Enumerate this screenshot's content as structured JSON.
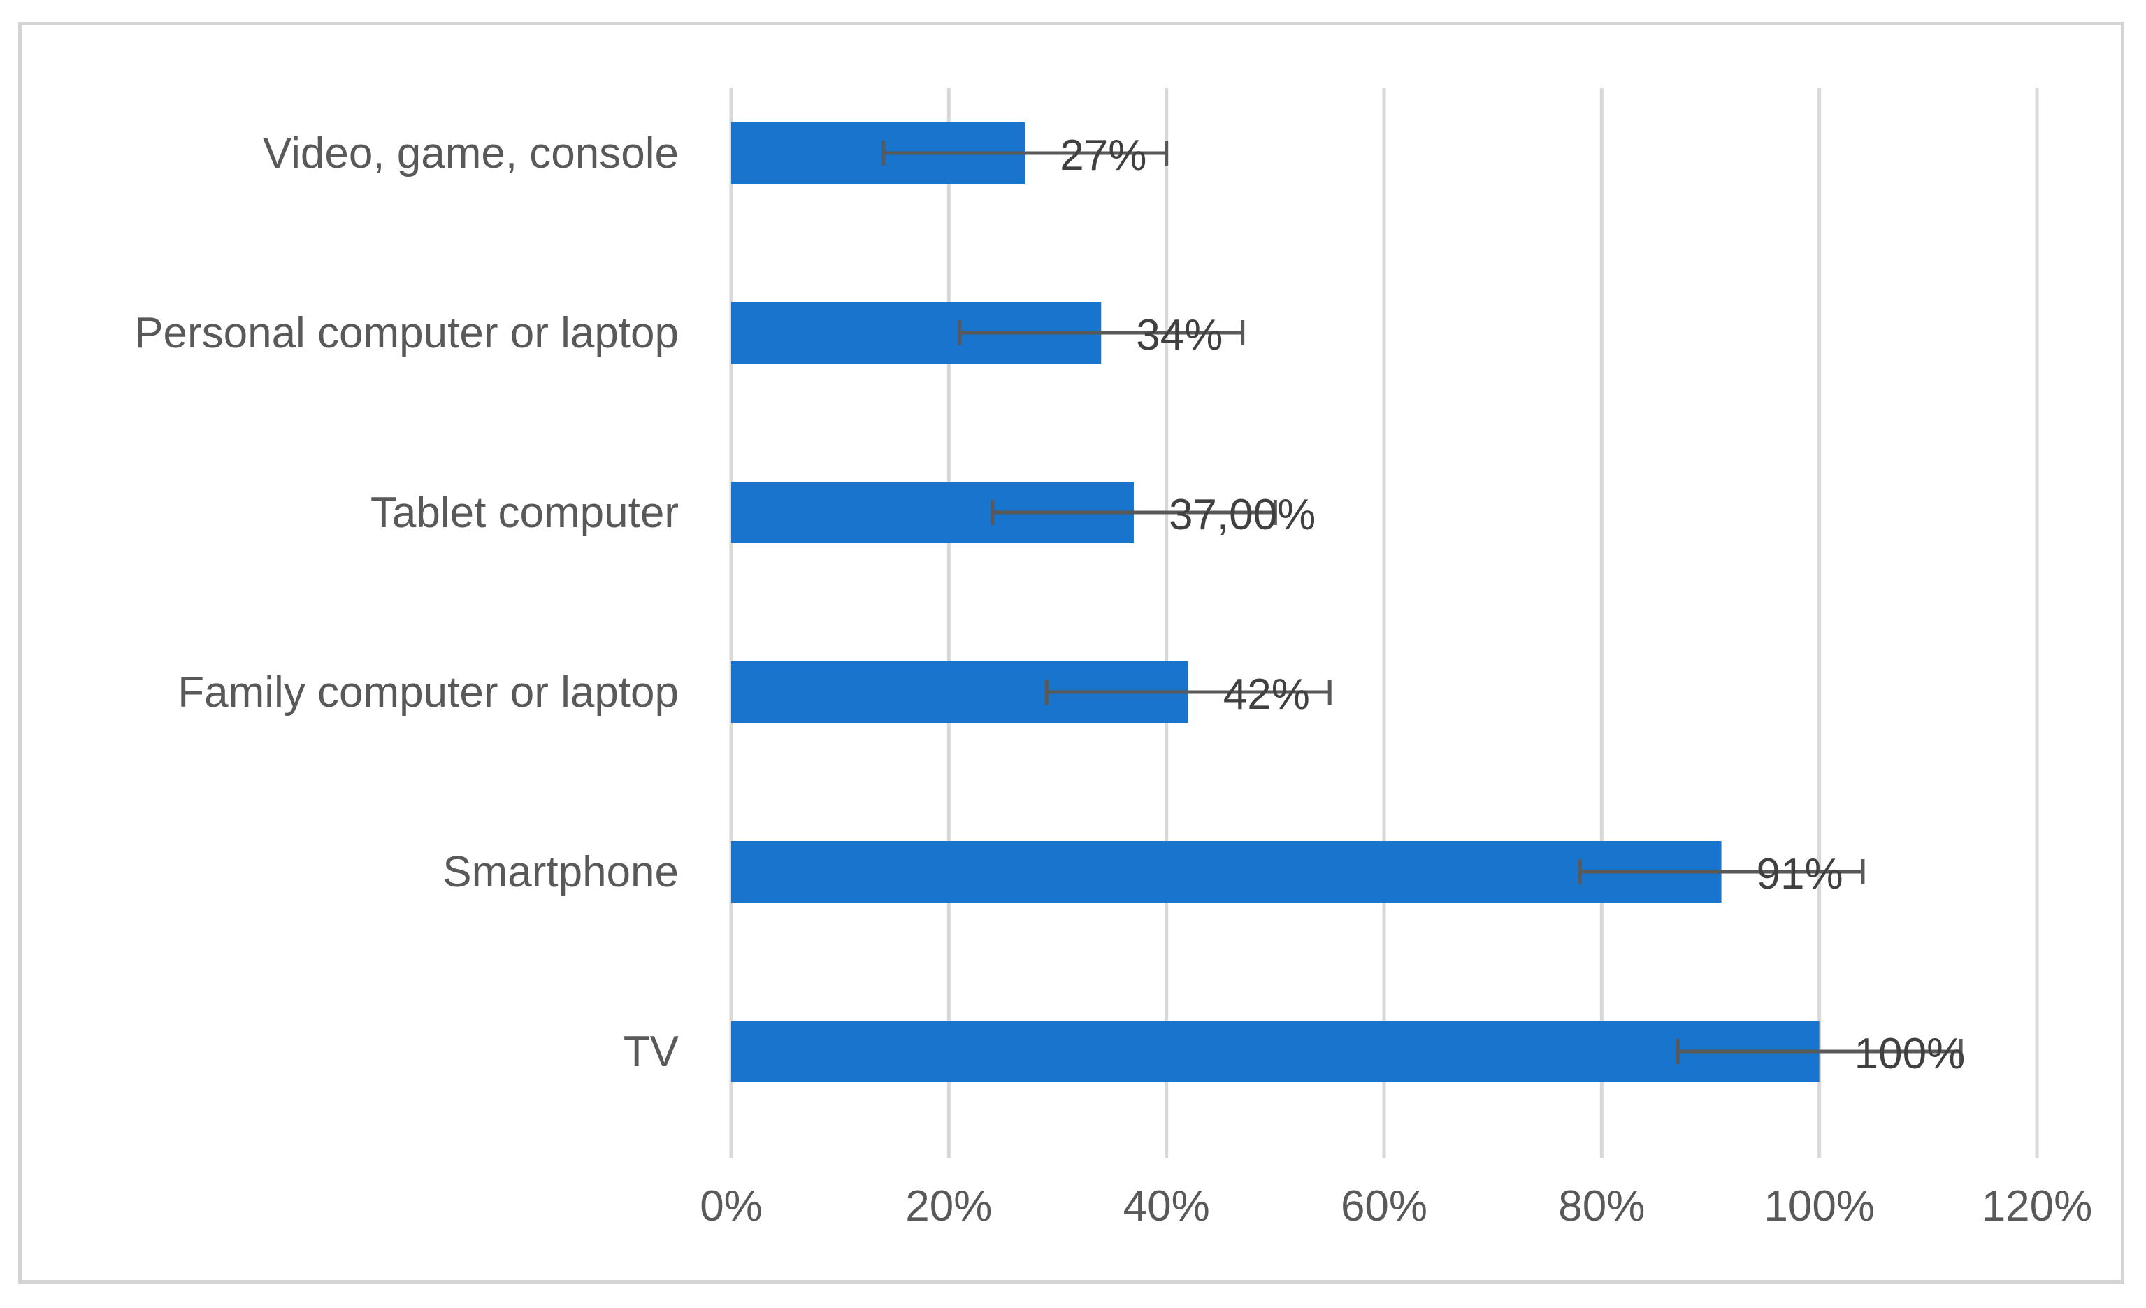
{
  "chart_data": {
    "type": "bar",
    "orientation": "horizontal",
    "categories": [
      "Video, game, console",
      "Personal computer or laptop",
      "Tablet computer",
      "Family computer or laptop",
      "Smartphone",
      "TV"
    ],
    "values": [
      27,
      34,
      37,
      42,
      91,
      100
    ],
    "data_labels": [
      "27%",
      "34%",
      "37,00%",
      "42%",
      "91%",
      "100%"
    ],
    "error_bars": [
      {
        "low": 14,
        "high": 40
      },
      {
        "low": 21,
        "high": 47
      },
      {
        "low": 24,
        "high": 50
      },
      {
        "low": 29,
        "high": 55
      },
      {
        "low": 78,
        "high": 104
      },
      {
        "low": 87,
        "high": 113
      }
    ],
    "xlim": [
      0,
      120
    ],
    "x_ticks": [
      0,
      20,
      40,
      60,
      80,
      100,
      120
    ],
    "x_tick_labels": [
      "0%",
      "20%",
      "40%",
      "60%",
      "80%",
      "100%",
      "120%"
    ],
    "grid": "vertical",
    "bar_color": "#1874cd",
    "error_color": "#595959",
    "title": "",
    "xlabel": "",
    "ylabel": ""
  }
}
